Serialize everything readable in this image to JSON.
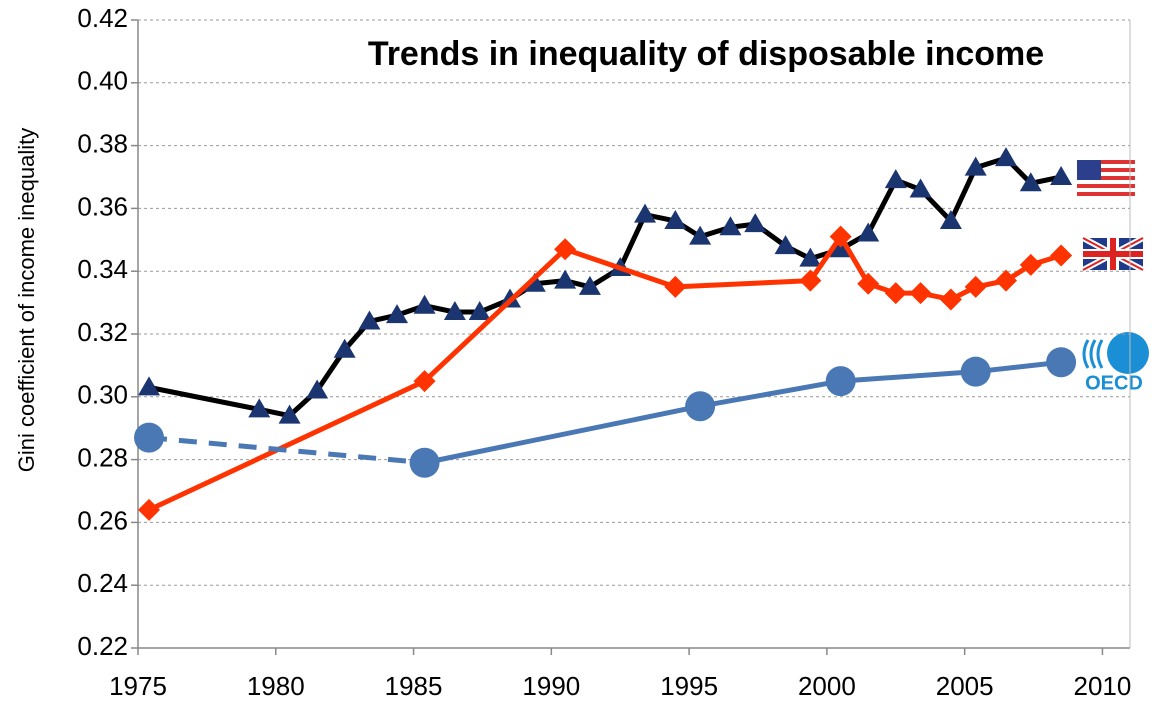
{
  "chart_data": {
    "type": "line",
    "title": "Trends in inequality of disposable income",
    "y_label": "Gini coefficient of income inequality",
    "xlim": [
      1975,
      2011
    ],
    "xticks": [
      1975,
      1980,
      1985,
      1990,
      1995,
      2000,
      2005,
      2010
    ],
    "ylim": [
      0.22,
      0.42
    ],
    "yticks": [
      0.22,
      0.24,
      0.26,
      0.28,
      {
        "value": 0.3,
        "label": "0.30"
      },
      0.32,
      0.34,
      0.36,
      0.38,
      {
        "value": 0.4,
        "label": "0.40"
      },
      0.42
    ],
    "grid": true,
    "series": [
      {
        "color": "#000000",
        "marker": "triangle",
        "marker_color": "#1b3570",
        "x": [
          1975.4,
          1979.4,
          1980.5,
          1981.5,
          1982.5,
          1983.4,
          1984.4,
          1985.4,
          1986.5,
          1987.4,
          1988.5,
          1989.4,
          1990.5,
          1991.4,
          1992.5,
          1993.4,
          1994.5,
          1995.4,
          1996.5,
          1997.4,
          1998.5,
          1999.4,
          2000.5,
          2001.5,
          2002.5,
          2003.4,
          2004.5,
          2005.4,
          2006.5,
          2007.4,
          2008.5
        ],
        "values": [
          0.303,
          0.296,
          0.294,
          0.302,
          0.315,
          0.324,
          0.326,
          0.329,
          0.327,
          0.327,
          0.331,
          0.336,
          0.337,
          0.335,
          0.341,
          0.358,
          0.356,
          0.351,
          0.354,
          0.355,
          0.348,
          0.344,
          0.347,
          0.352,
          0.369,
          0.366,
          0.356,
          0.373,
          0.376,
          0.368,
          0.37
        ]
      },
      {
        "color": "#ff3300",
        "marker": "diamond",
        "marker_color": "#ff3300",
        "x": [
          1975.4,
          1985.4,
          1990.5,
          1994.5,
          1999.4,
          2000.5,
          2001.5,
          2002.5,
          2003.4,
          2004.5,
          2005.4,
          2006.5,
          2007.4,
          2008.5
        ],
        "values": [
          0.264,
          0.305,
          0.347,
          0.335,
          0.337,
          0.351,
          0.336,
          0.333,
          0.333,
          0.331,
          0.335,
          0.337,
          0.342,
          0.345
        ]
      },
      {
        "name": "OECD",
        "color": "#4a78b5",
        "marker": "circle",
        "marker_color": "#4a78b5",
        "dashed_segments": [
          0
        ],
        "x": [
          1975.4,
          1985.4,
          1995.4,
          2000.5,
          2005.4,
          2008.5
        ],
        "values": [
          0.287,
          0.279,
          0.297,
          0.305,
          0.308,
          0.311
        ]
      }
    ]
  }
}
